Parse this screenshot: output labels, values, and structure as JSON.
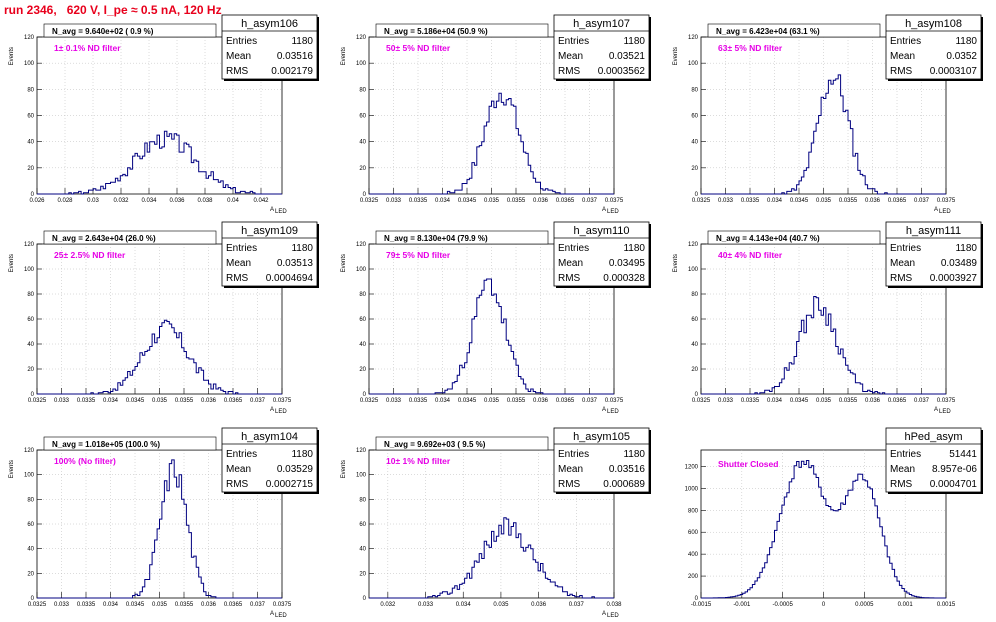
{
  "title": "run 2346,   620 V, I_pe ≈ 0.5 nA, 120 Hz",
  "style": {
    "hist_color": "#000080",
    "title_color": "#e8001c",
    "label_color": "#e600e6",
    "grid": "dotted"
  },
  "chart_data": [
    {
      "type": "histogram",
      "name": "h_asym106",
      "navg": "N_avg = 9.640e+02 ( 0.9 %)",
      "label": "1± 0.1% ND filter",
      "stats": {
        "Entries": "1180",
        "Mean": "0.03516",
        "RMS": "0.002179"
      },
      "xlim": [
        0.026,
        0.0435
      ],
      "ylim": [
        0,
        120
      ],
      "xticks": [
        0.026,
        0.028,
        0.03,
        0.032,
        0.034,
        0.036,
        0.038,
        0.04,
        0.042
      ],
      "xtick_labels": [
        "0.026",
        "0.028",
        "0.03",
        "0.032",
        "0.034",
        "0.036",
        "0.038",
        "0.04",
        "0.042"
      ],
      "yticks": [
        0,
        20,
        40,
        60,
        80,
        100,
        120
      ],
      "xlabel": "A",
      "xlabel_sub": "LED",
      "ylabel": "Events",
      "mean": 0.03516,
      "rms": 0.002179,
      "peak": 42,
      "seed": 3
    },
    {
      "type": "histogram",
      "name": "h_asym107",
      "navg": "N_avg = 5.186e+04 (50.9 %)",
      "label": "50± 5% ND filter",
      "stats": {
        "Entries": "1180",
        "Mean": "0.03521",
        "RMS": "0.0003562"
      },
      "xlim": [
        0.0325,
        0.0375
      ],
      "ylim": [
        0,
        120
      ],
      "xticks": [
        0.0325,
        0.033,
        0.0335,
        0.034,
        0.0345,
        0.035,
        0.0355,
        0.036,
        0.0365,
        0.037,
        0.0375
      ],
      "xtick_labels": [
        "0.0325",
        "0.033",
        "0.0335",
        "0.034",
        "0.0345",
        "0.035",
        "0.0355",
        "0.036",
        "0.0365",
        "0.037",
        "0.0375"
      ],
      "yticks": [
        0,
        20,
        40,
        60,
        80,
        100,
        120
      ],
      "xlabel": "A",
      "xlabel_sub": "LED",
      "ylabel": "Events",
      "mean": 0.03521,
      "rms": 0.0003562,
      "peak": 78,
      "seed": 7
    },
    {
      "type": "histogram",
      "name": "h_asym108",
      "navg": "N_avg = 6.423e+04 (63.1 %)",
      "label": "63± 5% ND filter",
      "stats": {
        "Entries": "1180",
        "Mean": "0.0352",
        "RMS": "0.0003107"
      },
      "xlim": [
        0.0325,
        0.0375
      ],
      "ylim": [
        0,
        120
      ],
      "xticks": [
        0.0325,
        0.033,
        0.0335,
        0.034,
        0.0345,
        0.035,
        0.0355,
        0.036,
        0.0365,
        0.037,
        0.0375
      ],
      "xtick_labels": [
        "0.0325",
        "0.033",
        "0.0335",
        "0.034",
        "0.0345",
        "0.035",
        "0.0355",
        "0.036",
        "0.0365",
        "0.037",
        "0.0375"
      ],
      "yticks": [
        0,
        20,
        40,
        60,
        80,
        100,
        120
      ],
      "xlabel": "A",
      "xlabel_sub": "LED",
      "ylabel": "Events",
      "mean": 0.0352,
      "rms": 0.0003107,
      "peak": 90,
      "seed": 11
    },
    {
      "type": "histogram",
      "name": "h_asym109",
      "navg": "N_avg = 2.643e+04 (26.0 %)",
      "label": "25± 2.5% ND filter",
      "stats": {
        "Entries": "1180",
        "Mean": "0.03513",
        "RMS": "0.0004694"
      },
      "xlim": [
        0.0325,
        0.0375
      ],
      "ylim": [
        0,
        120
      ],
      "xticks": [
        0.0325,
        0.033,
        0.0335,
        0.034,
        0.0345,
        0.035,
        0.0355,
        0.036,
        0.0365,
        0.037,
        0.0375
      ],
      "xtick_labels": [
        "0.0325",
        "0.033",
        "0.0335",
        "0.034",
        "0.0345",
        "0.035",
        "0.0355",
        "0.036",
        "0.0365",
        "0.037",
        "0.0375"
      ],
      "yticks": [
        0,
        20,
        40,
        60,
        80,
        100,
        120
      ],
      "xlabel": "A",
      "xlabel_sub": "LED",
      "ylabel": "Events",
      "mean": 0.03513,
      "rms": 0.0004694,
      "peak": 52,
      "seed": 17
    },
    {
      "type": "histogram",
      "name": "h_asym110",
      "navg": "N_avg = 8.130e+04 (79.9 %)",
      "label": "79± 5% ND filter",
      "stats": {
        "Entries": "1180",
        "Mean": "0.03495",
        "RMS": "0.000328"
      },
      "xlim": [
        0.0325,
        0.0375
      ],
      "ylim": [
        0,
        120
      ],
      "xticks": [
        0.0325,
        0.033,
        0.0335,
        0.034,
        0.0345,
        0.035,
        0.0355,
        0.036,
        0.0365,
        0.037,
        0.0375
      ],
      "xtick_labels": [
        "0.0325",
        "0.033",
        "0.0335",
        "0.034",
        "0.0345",
        "0.035",
        "0.0355",
        "0.036",
        "0.0365",
        "0.037",
        "0.0375"
      ],
      "yticks": [
        0,
        20,
        40,
        60,
        80,
        100,
        120
      ],
      "xlabel": "A",
      "xlabel_sub": "LED",
      "ylabel": "Events",
      "mean": 0.03495,
      "rms": 0.000328,
      "peak": 88,
      "seed": 23
    },
    {
      "type": "histogram",
      "name": "h_asym111",
      "navg": "N_avg = 4.143e+04 (40.7 %)",
      "label": "40± 4% ND filter",
      "stats": {
        "Entries": "1180",
        "Mean": "0.03489",
        "RMS": "0.0003927"
      },
      "xlim": [
        0.0325,
        0.0375
      ],
      "ylim": [
        0,
        120
      ],
      "xticks": [
        0.0325,
        0.033,
        0.0335,
        0.034,
        0.0345,
        0.035,
        0.0355,
        0.036,
        0.0365,
        0.037,
        0.0375
      ],
      "xtick_labels": [
        "0.0325",
        "0.033",
        "0.0335",
        "0.034",
        "0.0345",
        "0.035",
        "0.0355",
        "0.036",
        "0.0365",
        "0.037",
        "0.0375"
      ],
      "yticks": [
        0,
        20,
        40,
        60,
        80,
        100,
        120
      ],
      "xlabel": "A",
      "xlabel_sub": "LED",
      "ylabel": "Events",
      "mean": 0.03489,
      "rms": 0.0003927,
      "peak": 71,
      "seed": 29
    },
    {
      "type": "histogram",
      "name": "h_asym104",
      "navg": "N_avg = 1.018e+05 (100.0 %)",
      "label": "100% (No filter)",
      "stats": {
        "Entries": "1180",
        "Mean": "0.03529",
        "RMS": "0.0002715"
      },
      "xlim": [
        0.0325,
        0.0375
      ],
      "ylim": [
        0,
        120
      ],
      "xticks": [
        0.0325,
        0.033,
        0.0335,
        0.034,
        0.0345,
        0.035,
        0.0355,
        0.036,
        0.0365,
        0.037,
        0.0375
      ],
      "xtick_labels": [
        "0.0325",
        "0.033",
        "0.0335",
        "0.034",
        "0.0345",
        "0.035",
        "0.0355",
        "0.036",
        "0.0365",
        "0.037",
        "0.0375"
      ],
      "yticks": [
        0,
        20,
        40,
        60,
        80,
        100,
        120
      ],
      "xlabel": "A",
      "xlabel_sub": "LED",
      "ylabel": "Events",
      "mean": 0.03529,
      "rms": 0.0002715,
      "peak": 105,
      "seed": 31
    },
    {
      "type": "histogram",
      "name": "h_asym105",
      "navg": "N_avg = 9.692e+03 ( 9.5 %)",
      "label": "10± 1% ND filter",
      "stats": {
        "Entries": "1180",
        "Mean": "0.03516",
        "RMS": "0.000689"
      },
      "xlim": [
        0.0315,
        0.038
      ],
      "ylim": [
        0,
        120
      ],
      "xticks": [
        0.032,
        0.033,
        0.034,
        0.035,
        0.036,
        0.037,
        0.038
      ],
      "xtick_labels": [
        "0.032",
        "0.033",
        "0.034",
        "0.035",
        "0.036",
        "0.037",
        "0.038"
      ],
      "yticks": [
        0,
        20,
        40,
        60,
        80,
        100,
        120
      ],
      "xlabel": "A",
      "xlabel_sub": "LED",
      "ylabel": "Events",
      "mean": 0.03516,
      "rms": 0.000689,
      "peak": 57,
      "seed": 37
    },
    {
      "type": "histogram",
      "name": "hPed_asym",
      "navg": "",
      "label": "Shutter Closed",
      "stats": {
        "Entries": "51441",
        "Mean": "8.957e-06",
        "RMS": "0.0004701"
      },
      "xlim": [
        -0.0015,
        0.0015
      ],
      "ylim": [
        0,
        1350
      ],
      "xticks": [
        -0.0015,
        -0.001,
        -0.0005,
        0,
        0.0005,
        0.001,
        0.0015
      ],
      "xtick_labels": [
        "-0.0015",
        "-0.001",
        "-0.0005",
        "0",
        "0.0005",
        "0.001",
        "0.0015"
      ],
      "yticks": [
        0,
        200,
        400,
        600,
        800,
        1000,
        1200
      ],
      "xlabel": "",
      "xlabel_sub": "",
      "ylabel": "",
      "bimodal": [
        {
          "mean": -0.00025,
          "sigma": 0.00028,
          "peak": 1240
        },
        {
          "mean": 0.00048,
          "sigma": 0.00022,
          "peak": 1070
        }
      ],
      "seed": 41
    }
  ]
}
